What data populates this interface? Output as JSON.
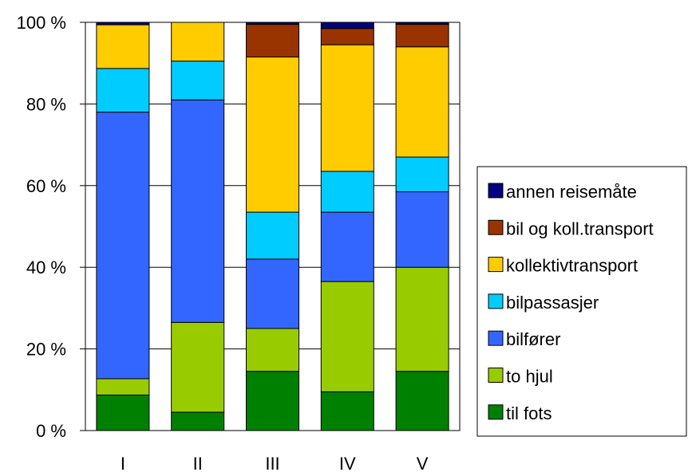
{
  "chart_data": {
    "type": "bar",
    "stacked": true,
    "percent": true,
    "categories": [
      "I",
      "II",
      "III",
      "IV",
      "V"
    ],
    "y_ticks": [
      "0 %",
      "20 %",
      "40 %",
      "60 %",
      "80 %",
      "100 %"
    ],
    "ylim": [
      0,
      100
    ],
    "grid": true,
    "legend_position": "right",
    "series": [
      {
        "name": "til fots",
        "color": "#008000",
        "values": [
          8.7,
          4.5,
          14.5,
          9.5,
          14.5
        ]
      },
      {
        "name": "to hjul",
        "color": "#99CC00",
        "values": [
          4.0,
          22.0,
          10.5,
          27.0,
          25.5
        ]
      },
      {
        "name": "bilfører",
        "color": "#3366FF",
        "values": [
          65.3,
          54.5,
          17.0,
          17.0,
          18.5
        ]
      },
      {
        "name": "bilpassasjer",
        "color": "#00CCFF",
        "values": [
          10.7,
          9.5,
          11.5,
          10.0,
          8.5
        ]
      },
      {
        "name": "kollektivtransport",
        "color": "#FFCC00",
        "values": [
          10.7,
          9.5,
          38.0,
          31.0,
          27.0
        ]
      },
      {
        "name": "bil og koll.transport",
        "color": "#993300",
        "values": [
          0,
          0,
          8.0,
          4.0,
          5.5
        ]
      },
      {
        "name": "annen reisemåte",
        "color": "#000080",
        "values": [
          0.6,
          0,
          0.5,
          1.5,
          0.5
        ]
      }
    ]
  }
}
